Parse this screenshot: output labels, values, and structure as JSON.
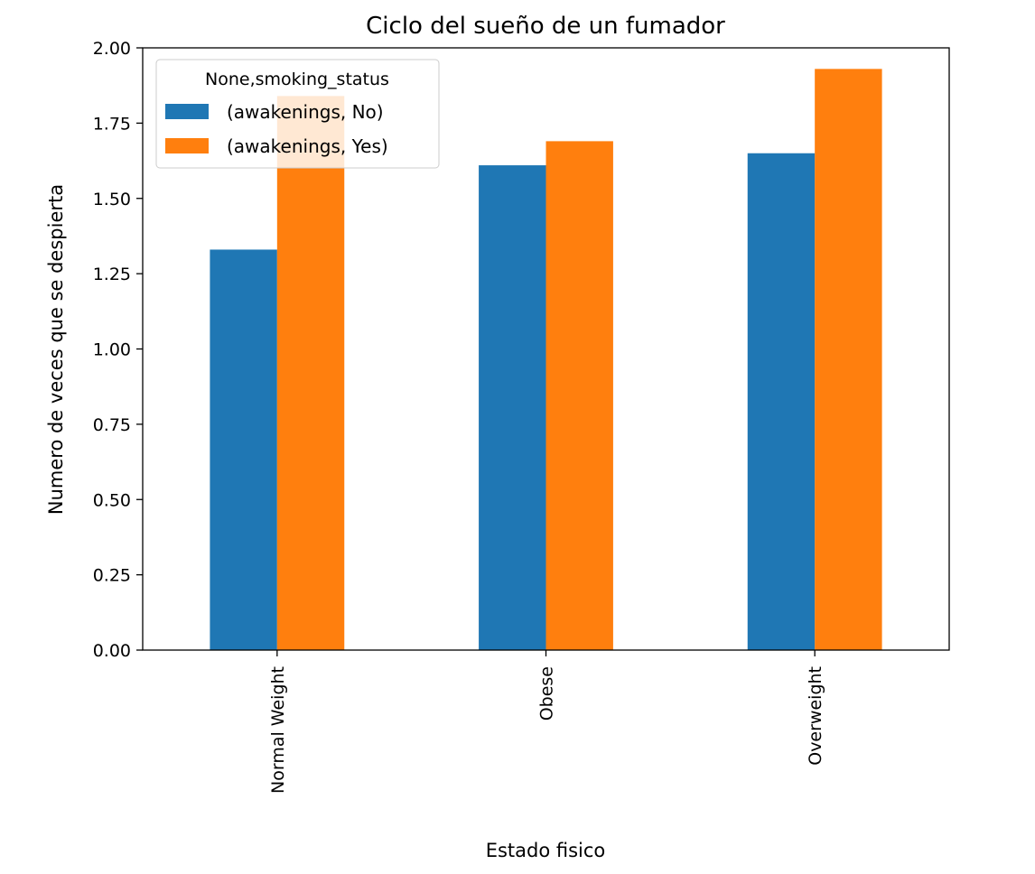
{
  "chart_data": {
    "type": "bar",
    "title": "Ciclo del sueño de un fumador",
    "xlabel": "Estado fisico",
    "ylabel": "Numero de veces que se despierta",
    "categories": [
      "Normal Weight",
      "Obese",
      "Overweight"
    ],
    "series": [
      {
        "name": "(awakenings, No)",
        "values": [
          1.33,
          1.61,
          1.65
        ],
        "color": "#1f77b4"
      },
      {
        "name": "(awakenings, Yes)",
        "values": [
          1.84,
          1.69,
          1.93
        ],
        "color": "#ff7f0e"
      }
    ],
    "ylim": [
      0,
      2.0
    ],
    "yticks": [
      "0.00",
      "0.25",
      "0.50",
      "0.75",
      "1.00",
      "1.25",
      "1.50",
      "1.75",
      "2.00"
    ],
    "legend": {
      "title": "None,smoking_status",
      "placement": "top-left"
    },
    "grid": false
  }
}
